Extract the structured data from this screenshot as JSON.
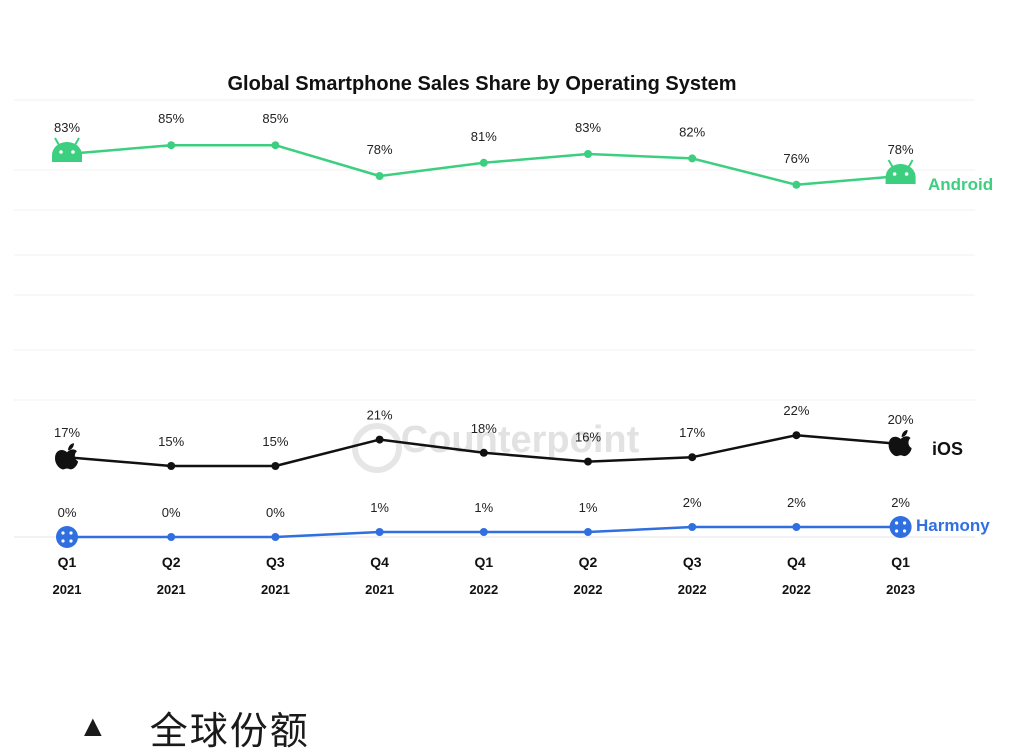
{
  "chart_data": {
    "type": "line",
    "title": "Global Smartphone Sales Share by Operating System",
    "categories": [
      [
        "Q1",
        "2021"
      ],
      [
        "Q2",
        "2021"
      ],
      [
        "Q3",
        "2021"
      ],
      [
        "Q4",
        "2021"
      ],
      [
        "Q1",
        "2022"
      ],
      [
        "Q2",
        "2022"
      ],
      [
        "Q3",
        "2022"
      ],
      [
        "Q4",
        "2022"
      ],
      [
        "Q1",
        "2023"
      ]
    ],
    "series": [
      {
        "name": "Android",
        "color": "#3ccf7f",
        "icon": "android-icon",
        "values": [
          83,
          85,
          85,
          78,
          81,
          83,
          82,
          76,
          78
        ],
        "labels": [
          "83%",
          "85%",
          "85%",
          "78%",
          "81%",
          "83%",
          "82%",
          "76%",
          "78%"
        ]
      },
      {
        "name": "iOS",
        "color": "#111111",
        "icon": "apple-icon",
        "values": [
          17,
          15,
          15,
          21,
          18,
          16,
          17,
          22,
          20
        ],
        "labels": [
          "17%",
          "15%",
          "15%",
          "21%",
          "18%",
          "16%",
          "17%",
          "22%",
          "20%"
        ]
      },
      {
        "name": "Harmony",
        "color": "#2f6fe0",
        "icon": "harmony-icon",
        "values": [
          0,
          0,
          0,
          1,
          1,
          1,
          2,
          2,
          2
        ],
        "labels": [
          "0%",
          "0%",
          "0%",
          "1%",
          "1%",
          "1%",
          "2%",
          "2%",
          "2%"
        ]
      }
    ],
    "ylim": [
      0,
      100
    ],
    "grid": true,
    "legend": "right, inline at line ends",
    "watermark": "Counterpoint"
  },
  "caption": {
    "marker": "▲",
    "text": "全球份额"
  }
}
